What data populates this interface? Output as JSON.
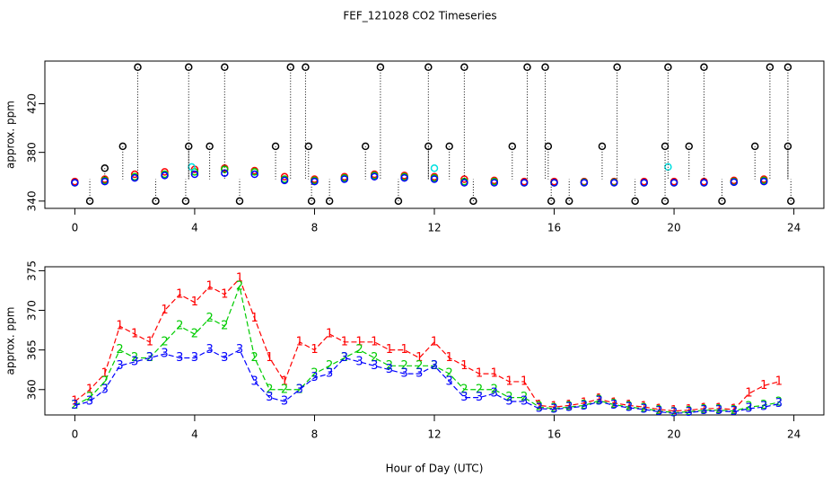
{
  "chart_data": [
    {
      "type": "scatter",
      "title": "FEF_121028  CO2 Timeseries",
      "ylabel": "approx. ppm",
      "xlim": [
        -1,
        25
      ],
      "xticks": [
        0,
        4,
        8,
        12,
        16,
        20,
        24
      ],
      "ylim": [
        334,
        455
      ],
      "yticks": [
        340,
        380,
        420
      ],
      "series": [
        {
          "color": "#ff0000",
          "x": [
            0,
            1,
            2,
            3,
            4,
            5,
            6,
            7,
            8,
            9,
            10,
            11,
            12,
            13,
            14,
            15,
            16,
            17,
            18,
            19,
            20,
            21,
            22,
            23
          ],
          "values": [
            356,
            358,
            362,
            364,
            366,
            367,
            365,
            360,
            358,
            360,
            362,
            361,
            360,
            358,
            357,
            356,
            356,
            356,
            356,
            356,
            356,
            356,
            357,
            358
          ]
        },
        {
          "color": "#00cc00",
          "x": [
            0,
            1,
            2,
            3,
            4,
            5,
            6,
            7,
            8,
            9,
            10,
            11,
            12,
            13,
            14,
            15,
            16,
            17,
            18,
            19,
            20,
            21,
            22,
            23
          ],
          "values": [
            355,
            357,
            360,
            362,
            364,
            366,
            364,
            358,
            357,
            359,
            361,
            360,
            359,
            356,
            356,
            355,
            355,
            355.5,
            355.5,
            355,
            355,
            355,
            356,
            357
          ]
        },
        {
          "color": "#0000ff",
          "x": [
            0,
            1,
            2,
            3,
            4,
            5,
            6,
            7,
            8,
            9,
            10,
            11,
            12,
            13,
            14,
            15,
            16,
            17,
            18,
            19,
            20,
            21,
            22,
            23
          ],
          "values": [
            355,
            356,
            359,
            361,
            362,
            363,
            362,
            357,
            356,
            358,
            360,
            359,
            358,
            355,
            355,
            355,
            355,
            355,
            355,
            355,
            355,
            355,
            355.5,
            356
          ]
        },
        {
          "color": "#00e0e0",
          "x": [
            3.9,
            12,
            19.8
          ],
          "values": [
            368,
            367,
            368
          ]
        },
        {
          "color": "#000000",
          "stems": true,
          "x": [
            0.5,
            1,
            2.1,
            1.6,
            2.7,
            3.8,
            3.8,
            3.7,
            4.5,
            5,
            5.5,
            6.7,
            7.2,
            7.7,
            7.8,
            7.9,
            8.5,
            9.7,
            10.2,
            10.8,
            11.8,
            11.8,
            12.5,
            13,
            13.3,
            14.6,
            15.1,
            15.7,
            15.8,
            15.9,
            16.5,
            17.6,
            18.1,
            18.7,
            19.7,
            19.8,
            19.7,
            20.5,
            21,
            21.6,
            22.7,
            23.2,
            23.8,
            23.8,
            23.9
          ],
          "values": [
            340,
            367,
            450,
            385,
            340,
            450,
            385,
            340,
            385,
            450,
            340,
            385,
            450,
            450,
            385,
            340,
            340,
            385,
            450,
            340,
            450,
            385,
            385,
            450,
            340,
            385,
            450,
            450,
            385,
            340,
            340,
            385,
            450,
            340,
            385,
            450,
            340,
            385,
            450,
            340,
            385,
            450,
            450,
            385,
            340
          ]
        }
      ]
    },
    {
      "type": "line",
      "ylabel": "approx. ppm",
      "xlabel": "Hour of Day (UTC)",
      "xlim": [
        -1,
        25
      ],
      "xticks": [
        0,
        4,
        8,
        12,
        16,
        20,
        24
      ],
      "ylim": [
        356.8,
        375.5
      ],
      "yticks": [
        360,
        365,
        370,
        375
      ],
      "x": [
        0,
        0.5,
        1,
        1.5,
        2,
        2.5,
        3,
        3.5,
        4,
        4.5,
        5,
        5.5,
        6,
        6.5,
        7,
        7.5,
        8,
        8.5,
        9,
        9.5,
        10,
        10.5,
        11,
        11.5,
        12,
        12.5,
        13,
        13.5,
        14,
        14.5,
        15,
        15.5,
        16,
        16.5,
        17,
        17.5,
        18,
        18.5,
        19,
        19.5,
        20,
        20.5,
        21,
        21.5,
        22,
        22.5,
        23,
        23.5
      ],
      "series": [
        {
          "marker": "1",
          "color": "#ff0000",
          "values": [
            358.5,
            360,
            362,
            368,
            367,
            366,
            370,
            372,
            371,
            373,
            372,
            374,
            369,
            364,
            361,
            366,
            365,
            367,
            366,
            366,
            366,
            365,
            365,
            364,
            366,
            364,
            363,
            362,
            362,
            361,
            361,
            358,
            357.8,
            358,
            358.3,
            358.8,
            358.3,
            358,
            357.8,
            357.5,
            357.3,
            357.4,
            357.6,
            357.6,
            357.5,
            359.5,
            360.5,
            361
          ]
        },
        {
          "marker": "2",
          "color": "#00cc00",
          "values": [
            358,
            359,
            361,
            365,
            364,
            364,
            366,
            368,
            367,
            369,
            368,
            373,
            364,
            360,
            360,
            360,
            362,
            363,
            364,
            365,
            364,
            363,
            363,
            363,
            363,
            362,
            360,
            360,
            360,
            359,
            359,
            357.8,
            357.6,
            357.8,
            358,
            358.6,
            358.1,
            357.8,
            357.6,
            357.3,
            357.1,
            357.2,
            357.4,
            357.4,
            357.3,
            357.8,
            358,
            358.4
          ]
        },
        {
          "marker": "3",
          "color": "#0000ff",
          "values": [
            358,
            358.5,
            360,
            363,
            363.5,
            364,
            364.5,
            364,
            364,
            365,
            364,
            365,
            361,
            359,
            358.5,
            360,
            361.5,
            362,
            364,
            363.5,
            363,
            362.5,
            362,
            362,
            363,
            361,
            359,
            359,
            359.5,
            358.5,
            358.5,
            357.6,
            357.5,
            357.7,
            357.9,
            358.5,
            358,
            357.7,
            357.5,
            357.2,
            357,
            357.1,
            357.3,
            357.3,
            357.2,
            357.6,
            357.8,
            358.2
          ]
        }
      ]
    }
  ]
}
